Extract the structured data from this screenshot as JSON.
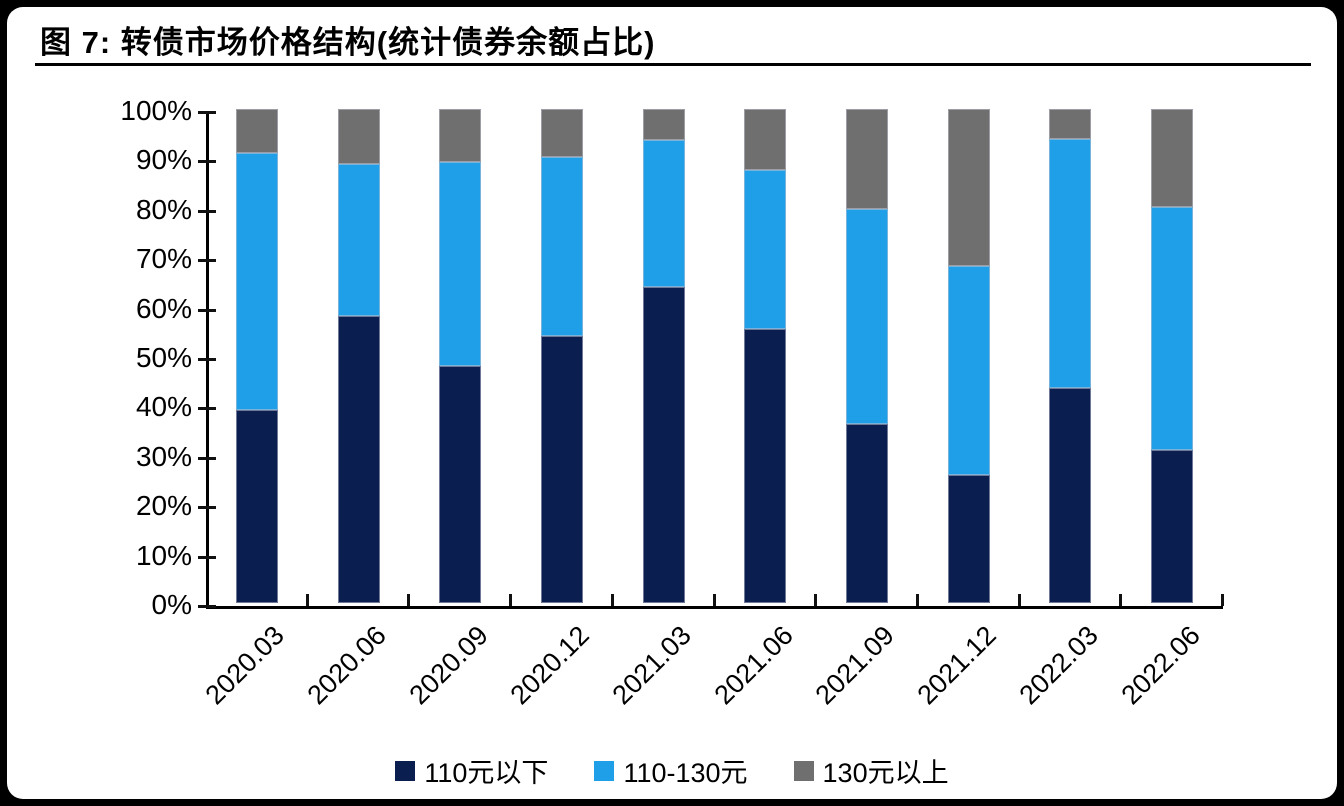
{
  "header": {
    "title": "图 7:  转债市场价格结构(统计债券余额占比)"
  },
  "chart_data": {
    "type": "bar",
    "subtype": "stacked-100-percent",
    "title": "转债市场价格结构(统计债券余额占比)",
    "figure_label": "图 7",
    "categories": [
      "2020.03",
      "2020.06",
      "2020.09",
      "2020.12",
      "2021.03",
      "2021.06",
      "2021.09",
      "2021.12",
      "2022.03",
      "2022.06"
    ],
    "series": [
      {
        "name": "110元以下",
        "color": "#0a1e50",
        "values": [
          39.0,
          58.0,
          48.0,
          54.0,
          64.0,
          55.5,
          36.2,
          26.0,
          43.5,
          31.0
        ]
      },
      {
        "name": "110-130元",
        "color": "#1e9fe8",
        "values": [
          52.0,
          30.9,
          41.3,
          36.2,
          29.7,
          32.2,
          43.5,
          42.3,
          50.4,
          49.2
        ]
      },
      {
        "name": "130元以上",
        "color": "#6f6f6f",
        "values": [
          9.0,
          11.1,
          10.7,
          9.8,
          6.3,
          12.3,
          20.3,
          31.7,
          6.1,
          19.8
        ]
      }
    ],
    "xlabel": "",
    "ylabel": "",
    "ylim": [
      0,
      100
    ],
    "y_ticks": [
      "0%",
      "10%",
      "20%",
      "30%",
      "40%",
      "50%",
      "60%",
      "70%",
      "80%",
      "90%",
      "100%"
    ],
    "y_tick_step": 10,
    "x_tick_rotation": 45,
    "grid": false,
    "legend_position": "bottom",
    "axis_color": "#000000",
    "background_color": "#ffffff",
    "frame_color": "#000000"
  }
}
